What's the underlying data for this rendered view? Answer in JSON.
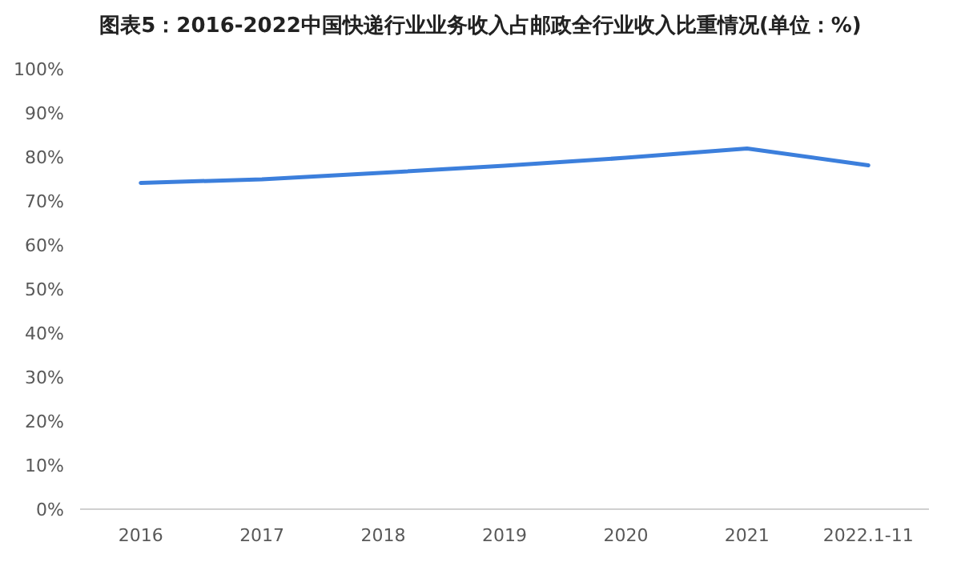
{
  "chart_data": {
    "type": "line",
    "title": "图表5：2016-2022中国快递行业业务收入占邮政全行业收入比重情况(单位：%)",
    "categories": [
      "2016",
      "2017",
      "2018",
      "2019",
      "2020",
      "2021",
      "2022.1-11"
    ],
    "series": [
      {
        "color": "#3c7fdc",
        "values": [
          74.1,
          74.9,
          76.4,
          78.0,
          79.8,
          81.9,
          78.1
        ]
      }
    ],
    "ylim": [
      0,
      100
    ],
    "yticks": [
      {
        "value": 0,
        "label": "0%"
      },
      {
        "value": 10,
        "label": "10%"
      },
      {
        "value": 20,
        "label": "20%"
      },
      {
        "value": 30,
        "label": "30%"
      },
      {
        "value": 40,
        "label": "40%"
      },
      {
        "value": 50,
        "label": "50%"
      },
      {
        "value": 60,
        "label": "60%"
      },
      {
        "value": 70,
        "label": "70%"
      },
      {
        "value": 80,
        "label": "80%"
      },
      {
        "value": 90,
        "label": "90%"
      },
      {
        "value": 100,
        "label": "100%"
      }
    ],
    "grid": false,
    "marker": "none",
    "line_style": "solid"
  }
}
